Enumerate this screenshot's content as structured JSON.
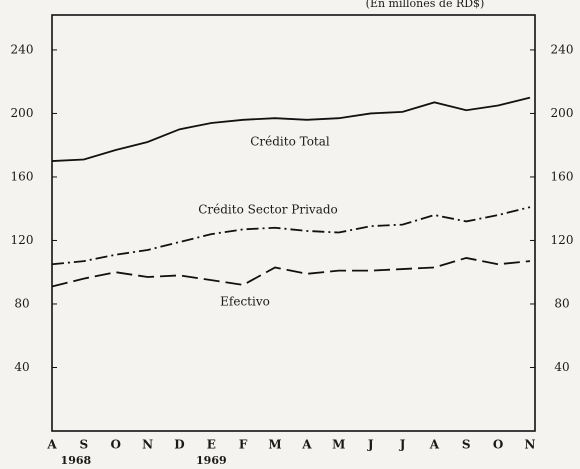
{
  "chart_data": {
    "type": "line",
    "subtitle": "(En millones de RD$)",
    "categories": [
      "A",
      "S",
      "O",
      "N",
      "D",
      "E",
      "F",
      "M",
      "A",
      "M",
      "J",
      "J",
      "A",
      "S",
      "O",
      "N"
    ],
    "year_labels": [
      "1968",
      "1969"
    ],
    "series": [
      {
        "name": "Crédito Total",
        "color": "#111111",
        "dash": "solid",
        "values": [
          170,
          171,
          177,
          182,
          190,
          194,
          196,
          197,
          196,
          197,
          200,
          201,
          207,
          202,
          205,
          210
        ]
      },
      {
        "name": "Crédito Sector Privado",
        "color": "#111111",
        "dash": "dashdot",
        "values": [
          105,
          107,
          111,
          114,
          119,
          124,
          127,
          128,
          126,
          125,
          129,
          130,
          136,
          132,
          136,
          141
        ]
      },
      {
        "name": "Efectivo",
        "color": "#111111",
        "dash": "dashed",
        "values": [
          91,
          96,
          100,
          97,
          98,
          95,
          92,
          103,
          99,
          101,
          101,
          102,
          103,
          109,
          105,
          107
        ]
      }
    ],
    "ylim": [
      0,
      262
    ],
    "yticks": [
      40,
      80,
      120,
      160,
      200,
      240
    ],
    "y2lim": [
      0,
      262
    ],
    "y2ticks": [
      40,
      80,
      120,
      160,
      200,
      240
    ],
    "grid": false
  }
}
